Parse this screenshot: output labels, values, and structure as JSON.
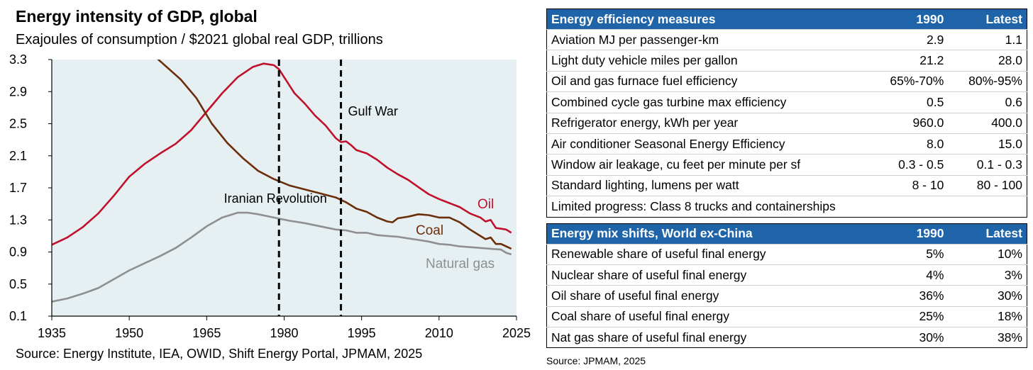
{
  "chart_data": {
    "type": "line",
    "title": "Energy intensity of GDP, global",
    "subtitle": "Exajoules of consumption / $2021 global real GDP, trillions",
    "source": "Source: Energy Institute, IEA, OWID, Shift Energy Portal, JPMAM, 2025",
    "xlim": [
      1935,
      2025
    ],
    "ylim": [
      0.1,
      3.3
    ],
    "x_ticks": [
      1935,
      1950,
      1965,
      1980,
      1995,
      2010,
      2025
    ],
    "y_ticks": [
      0.1,
      0.5,
      0.9,
      1.3,
      1.7,
      2.1,
      2.5,
      2.9,
      3.3
    ],
    "y_tick_labels": [
      "0.1",
      "0.5",
      "0.9",
      "1.3",
      "1.7",
      "2.1",
      "2.5",
      "2.9",
      "3.3"
    ],
    "x_tick_labels": [
      "1935",
      "1950",
      "1965",
      "1980",
      "1995",
      "2010",
      "2025"
    ],
    "grid": false,
    "plot_background": "#e6eff2",
    "series": [
      {
        "name": "Oil",
        "color": "#c0112c",
        "points": [
          [
            1935,
            0.99
          ],
          [
            1938,
            1.08
          ],
          [
            1941,
            1.21
          ],
          [
            1944,
            1.38
          ],
          [
            1947,
            1.6
          ],
          [
            1950,
            1.84
          ],
          [
            1953,
            2.0
          ],
          [
            1956,
            2.13
          ],
          [
            1959,
            2.25
          ],
          [
            1962,
            2.42
          ],
          [
            1965,
            2.65
          ],
          [
            1968,
            2.88
          ],
          [
            1971,
            3.08
          ],
          [
            1974,
            3.21
          ],
          [
            1976,
            3.25
          ],
          [
            1978,
            3.23
          ],
          [
            1979,
            3.18
          ],
          [
            1980,
            3.08
          ],
          [
            1982,
            2.88
          ],
          [
            1984,
            2.75
          ],
          [
            1986,
            2.6
          ],
          [
            1988,
            2.48
          ],
          [
            1990,
            2.32
          ],
          [
            1991,
            2.27
          ],
          [
            1992,
            2.28
          ],
          [
            1993,
            2.23
          ],
          [
            1994,
            2.17
          ],
          [
            1996,
            2.13
          ],
          [
            1998,
            2.05
          ],
          [
            2000,
            1.95
          ],
          [
            2002,
            1.87
          ],
          [
            2004,
            1.8
          ],
          [
            2006,
            1.71
          ],
          [
            2008,
            1.62
          ],
          [
            2010,
            1.56
          ],
          [
            2012,
            1.51
          ],
          [
            2014,
            1.46
          ],
          [
            2016,
            1.38
          ],
          [
            2018,
            1.33
          ],
          [
            2019,
            1.28
          ],
          [
            2020,
            1.3
          ],
          [
            2021,
            1.2
          ],
          [
            2022,
            1.19
          ],
          [
            2023,
            1.18
          ],
          [
            2024,
            1.14
          ]
        ],
        "label": "Oil"
      },
      {
        "name": "Coal",
        "color": "#6b2e0a",
        "points": [
          [
            1950,
            3.7
          ],
          [
            1953,
            3.45
          ],
          [
            1956,
            3.28
          ],
          [
            1960,
            3.05
          ],
          [
            1963,
            2.82
          ],
          [
            1966,
            2.5
          ],
          [
            1969,
            2.26
          ],
          [
            1972,
            2.07
          ],
          [
            1975,
            1.91
          ],
          [
            1978,
            1.81
          ],
          [
            1981,
            1.73
          ],
          [
            1984,
            1.68
          ],
          [
            1987,
            1.63
          ],
          [
            1990,
            1.58
          ],
          [
            1992,
            1.52
          ],
          [
            1994,
            1.44
          ],
          [
            1996,
            1.4
          ],
          [
            1998,
            1.33
          ],
          [
            2000,
            1.28
          ],
          [
            2001,
            1.27
          ],
          [
            2002,
            1.32
          ],
          [
            2004,
            1.34
          ],
          [
            2006,
            1.37
          ],
          [
            2008,
            1.36
          ],
          [
            2010,
            1.33
          ],
          [
            2012,
            1.33
          ],
          [
            2014,
            1.27
          ],
          [
            2016,
            1.18
          ],
          [
            2018,
            1.1
          ],
          [
            2019,
            1.06
          ],
          [
            2020,
            1.08
          ],
          [
            2021,
            1.0
          ],
          [
            2022,
            1.0
          ],
          [
            2023,
            0.97
          ],
          [
            2024,
            0.94
          ]
        ],
        "label": "Coal"
      },
      {
        "name": "Natural gas",
        "color": "#8f8f8f",
        "points": [
          [
            1935,
            0.28
          ],
          [
            1938,
            0.32
          ],
          [
            1941,
            0.38
          ],
          [
            1944,
            0.45
          ],
          [
            1947,
            0.56
          ],
          [
            1950,
            0.67
          ],
          [
            1953,
            0.76
          ],
          [
            1956,
            0.85
          ],
          [
            1959,
            0.95
          ],
          [
            1962,
            1.08
          ],
          [
            1965,
            1.22
          ],
          [
            1968,
            1.33
          ],
          [
            1971,
            1.39
          ],
          [
            1973,
            1.39
          ],
          [
            1975,
            1.37
          ],
          [
            1978,
            1.33
          ],
          [
            1981,
            1.29
          ],
          [
            1984,
            1.26
          ],
          [
            1987,
            1.22
          ],
          [
            1990,
            1.18
          ],
          [
            1992,
            1.17
          ],
          [
            1994,
            1.14
          ],
          [
            1996,
            1.14
          ],
          [
            1998,
            1.11
          ],
          [
            2000,
            1.1
          ],
          [
            2002,
            1.09
          ],
          [
            2004,
            1.07
          ],
          [
            2006,
            1.05
          ],
          [
            2008,
            1.03
          ],
          [
            2010,
            1.0
          ],
          [
            2012,
            0.99
          ],
          [
            2014,
            0.97
          ],
          [
            2016,
            0.96
          ],
          [
            2018,
            0.95
          ],
          [
            2020,
            0.94
          ],
          [
            2022,
            0.93
          ],
          [
            2023,
            0.89
          ],
          [
            2024,
            0.87
          ]
        ],
        "label": "Natural gas"
      }
    ],
    "events": [
      {
        "x": 1979,
        "label": "Iranian Revolution"
      },
      {
        "x": 1991,
        "label": "Gulf War"
      }
    ]
  },
  "table_efficiency": {
    "header": {
      "label": "Energy efficiency measures",
      "col1": "1990",
      "col2": "Latest"
    },
    "rows": [
      {
        "label": "Aviation MJ per passenger-km",
        "a": "2.9",
        "b": "1.1"
      },
      {
        "label": "Light duty vehicle miles per gallon",
        "a": "21.2",
        "b": "28.0"
      },
      {
        "label": "Oil and gas furnace fuel efficiency",
        "a": "65%-70%",
        "b": "80%-95%"
      },
      {
        "label": "Combined cycle gas turbine max efficiency",
        "a": "0.5",
        "b": "0.6"
      },
      {
        "label": "Refrigerator energy, kWh per year",
        "a": "960.0",
        "b": "400.0"
      },
      {
        "label": "Air conditioner Seasonal Energy Efficiency",
        "a": "8.0",
        "b": "15.0"
      },
      {
        "label": "Window air leakage, cu feet per minute per sf",
        "a": "0.3 - 0.5",
        "b": "0.1 - 0.3"
      },
      {
        "label": "Standard lighting, lumens per watt",
        "a": "8 - 10",
        "b": "80 - 100"
      }
    ],
    "note": "Limited progress: Class 8 trucks and containerships"
  },
  "table_mix": {
    "header": {
      "label": "Energy mix shifts, World ex-China",
      "col1": "1990",
      "col2": "Latest"
    },
    "rows": [
      {
        "label": "Renewable share of useful final energy",
        "a": "5%",
        "b": "10%"
      },
      {
        "label": "Nuclear share of useful final energy",
        "a": "4%",
        "b": "3%"
      },
      {
        "label": "Oil share of useful final energy",
        "a": "36%",
        "b": "30%"
      },
      {
        "label": "Coal share of useful final energy",
        "a": "25%",
        "b": "18%"
      },
      {
        "label": "Nat gas share of useful final energy",
        "a": "30%",
        "b": "38%"
      }
    ]
  },
  "table_source": "Source: JPMAM, 2025"
}
